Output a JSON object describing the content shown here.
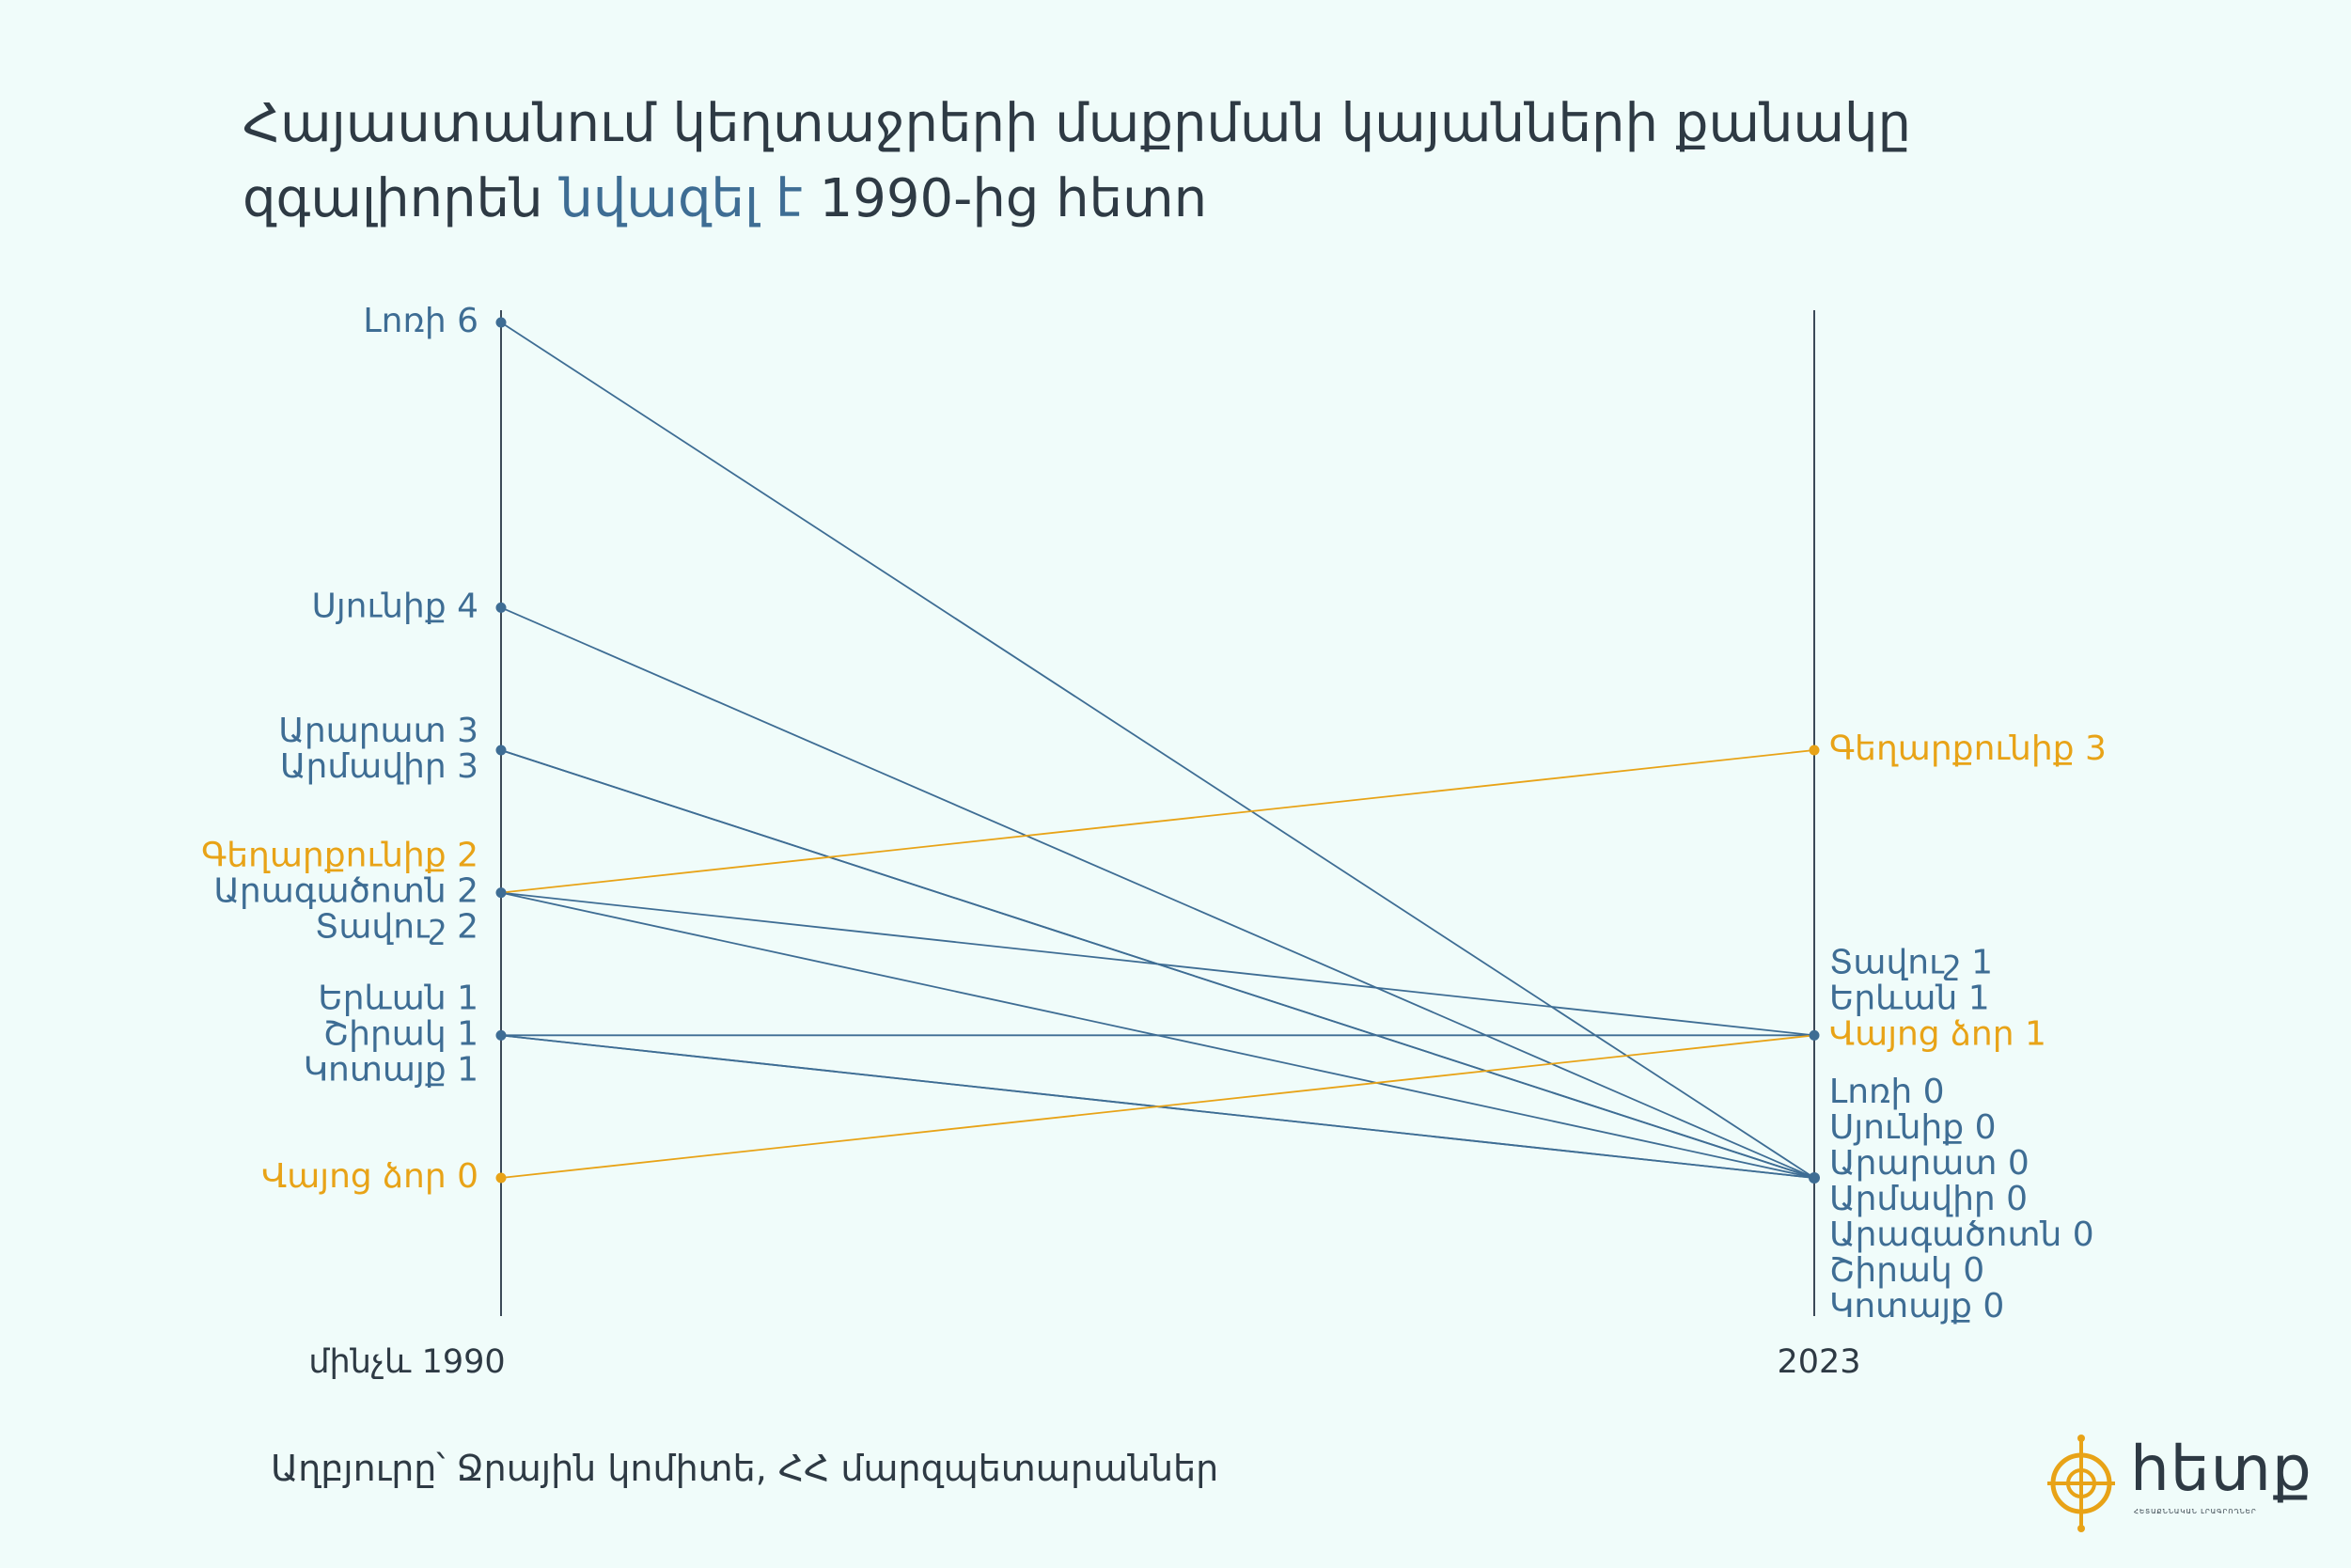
{
  "title": {
    "part1": "Հայաստանում կեղտաջրերի մաքրման կայանների քանակը զգալիորեն ",
    "highlight": "նվազել է",
    "part2": " 1990-ից հետո"
  },
  "source": "Աղբյուրը՝ Ջրային կոմիտե, ՀՀ մարզպետարաններ",
  "logo": {
    "text": "հետք",
    "subtitle": "ՀԵՏԱՔՆՆԱԿԱՆ ԼՐԱԳՐՈՂՆԵՐ"
  },
  "colors": {
    "background": "#f0fcfa",
    "default": "#3e6d94",
    "highlight": "#e8a317",
    "text": "#2e3a44"
  },
  "chart_data": {
    "type": "slope",
    "x": [
      "մինչև 1990",
      "2023"
    ],
    "series": [
      {
        "name": "Լոռի",
        "values": [
          6,
          0
        ],
        "highlight": false
      },
      {
        "name": "Սյունիք",
        "values": [
          4,
          0
        ],
        "highlight": false
      },
      {
        "name": "Արարատ",
        "values": [
          3,
          0
        ],
        "highlight": false
      },
      {
        "name": "Արմավիր",
        "values": [
          3,
          0
        ],
        "highlight": false
      },
      {
        "name": "Գեղարքունիք",
        "values": [
          2,
          3
        ],
        "highlight": true
      },
      {
        "name": "Արագածոտն",
        "values": [
          2,
          0
        ],
        "highlight": false
      },
      {
        "name": "Տավուշ",
        "values": [
          2,
          1
        ],
        "highlight": false
      },
      {
        "name": "Երևան",
        "values": [
          1,
          1
        ],
        "highlight": false
      },
      {
        "name": "Շիրակ",
        "values": [
          1,
          0
        ],
        "highlight": false
      },
      {
        "name": "Կոտայք",
        "values": [
          1,
          0
        ],
        "highlight": false
      },
      {
        "name": "Վայոց ձոր",
        "values": [
          0,
          1
        ],
        "highlight": true
      }
    ],
    "ylim": [
      0,
      6
    ],
    "left_labels": [
      {
        "value": 6,
        "lines": [
          {
            "text": "Լոռի 6",
            "highlight": false
          }
        ]
      },
      {
        "value": 4,
        "lines": [
          {
            "text": "Սյունիք 4",
            "highlight": false
          }
        ]
      },
      {
        "value": 3,
        "lines": [
          {
            "text": "Արարատ 3",
            "highlight": false
          },
          {
            "text": "Արմավիր 3",
            "highlight": false
          }
        ]
      },
      {
        "value": 2,
        "lines": [
          {
            "text": "Գեղարքունիք 2",
            "highlight": true
          },
          {
            "text": "Արագածոտն 2",
            "highlight": false
          },
          {
            "text": "Տավուշ 2",
            "highlight": false
          }
        ]
      },
      {
        "value": 1,
        "lines": [
          {
            "text": "Երևան 1",
            "highlight": false
          },
          {
            "text": "Շիրակ 1",
            "highlight": false
          },
          {
            "text": "Կոտայք 1",
            "highlight": false
          }
        ]
      },
      {
        "value": 0,
        "lines": [
          {
            "text": "Վայոց ձոր 0",
            "highlight": true
          }
        ]
      }
    ],
    "right_labels": [
      {
        "value": 3,
        "lines": [
          {
            "text": "Գեղարքունիք 3",
            "highlight": true
          }
        ]
      },
      {
        "value": 1,
        "lines": [
          {
            "text": "Տավուշ 1",
            "highlight": false
          },
          {
            "text": "Երևան 1",
            "highlight": false
          },
          {
            "text": "Վայոց ձոր 1",
            "highlight": true
          }
        ]
      },
      {
        "value": 0,
        "lines": [
          {
            "text": "Լոռի 0",
            "highlight": false
          },
          {
            "text": "Սյունիք 0",
            "highlight": false
          },
          {
            "text": "Արարատ 0",
            "highlight": false
          },
          {
            "text": "Արմավիր 0",
            "highlight": false
          },
          {
            "text": "Արագածոտն 0",
            "highlight": false
          },
          {
            "text": "Շիրակ 0",
            "highlight": false
          },
          {
            "text": "Կոտայք 0",
            "highlight": false
          }
        ]
      }
    ]
  }
}
